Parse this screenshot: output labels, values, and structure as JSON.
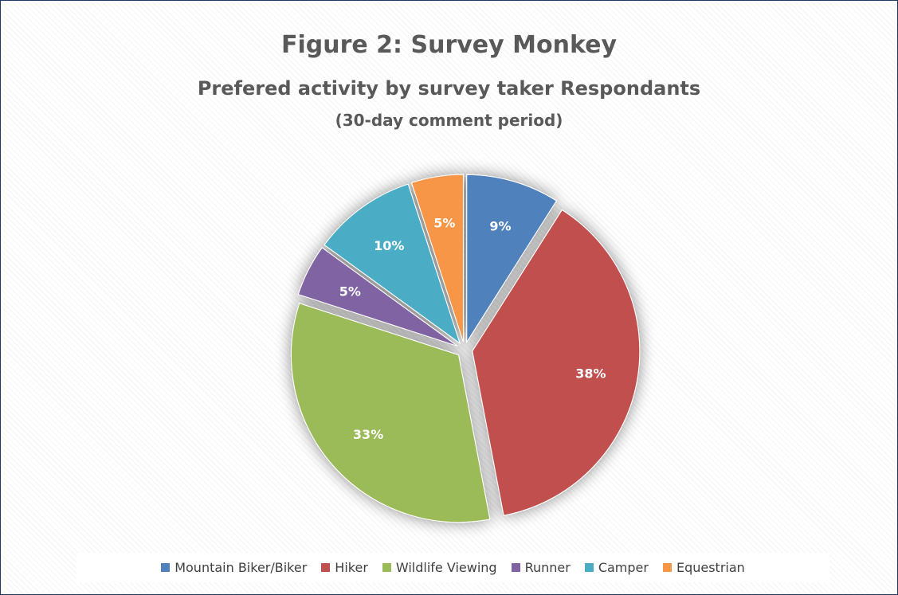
{
  "chart_data": {
    "type": "pie",
    "title": "Figure 2: Survey Monkey",
    "subtitle": "Prefered activity by survey taker Respondants",
    "note": "(30-day comment period)",
    "categories": [
      "Mountain Biker/Biker",
      "Hiker",
      "Wildlife Viewing",
      "Runner",
      "Camper",
      "Equestrian"
    ],
    "values": [
      9,
      38,
      33,
      5,
      10,
      5
    ],
    "labels": [
      "9%",
      "38%",
      "33%",
      "5%",
      "10%",
      "5%"
    ],
    "colors": [
      "#4f81bd",
      "#c0504d",
      "#9bbb59",
      "#8064a2",
      "#4bacc6",
      "#f79646"
    ],
    "legend_position": "bottom",
    "exploded": true
  }
}
